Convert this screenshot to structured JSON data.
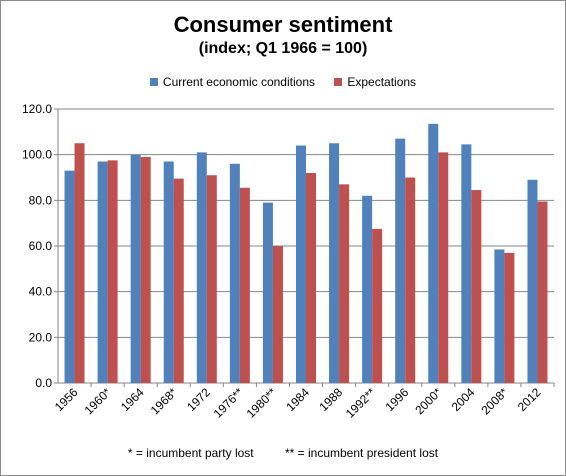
{
  "chart_data": {
    "type": "bar",
    "title": "Consumer sentiment",
    "subtitle": "(index; Q1 1966 = 100)",
    "categories": [
      "1956",
      "1960*",
      "1964",
      "1968*",
      "1972",
      "1976**",
      "1980**",
      "1984",
      "1988",
      "1992**",
      "1996",
      "2000*",
      "2004",
      "2008*",
      "2012"
    ],
    "series": [
      {
        "name": "Current economic conditions",
        "color": "#4f81bd",
        "values": [
          93.0,
          97.0,
          100.0,
          97.0,
          101.0,
          96.0,
          79.0,
          104.0,
          105.0,
          82.0,
          107.0,
          113.5,
          104.5,
          58.5,
          89.0
        ]
      },
      {
        "name": "Expectations",
        "color": "#c0504d",
        "values": [
          105.0,
          97.5,
          99.0,
          89.5,
          91.0,
          85.5,
          60.0,
          92.0,
          87.0,
          67.5,
          90.0,
          101.0,
          84.5,
          57.0,
          79.5
        ]
      }
    ],
    "ylim": [
      0,
      120
    ],
    "yticks": [
      "0.0",
      "20.0",
      "40.0",
      "60.0",
      "80.0",
      "100.0",
      "120.0"
    ],
    "grid": true,
    "legend_position": "top",
    "footnotes": [
      "* = incumbent party lost",
      "** = incumbent president lost"
    ]
  }
}
